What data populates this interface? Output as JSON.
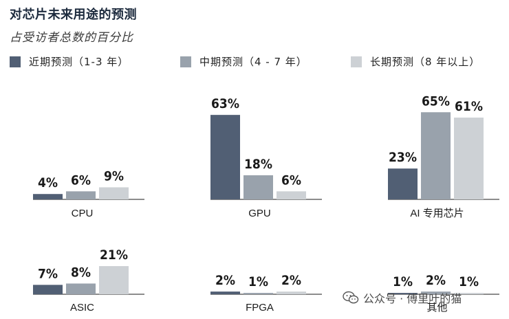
{
  "header": {
    "title": "对芯片未来用途的预测",
    "subtitle": "占受访者总数的百分比"
  },
  "colors": {
    "near": "#515f74",
    "mid": "#99a2ac",
    "long": "#cdd1d5",
    "axis": "#1a1a1a"
  },
  "legend": [
    {
      "label": "近期预测（1-3 年）",
      "color": "#515f74"
    },
    {
      "label": "中期预测（4 - 7 年）",
      "color": "#99a2ac"
    },
    {
      "label": "长期预测（8 年以上）",
      "color": "#cdd1d5"
    }
  ],
  "chart_data": {
    "type": "bar",
    "title": "对芯片未来用途的预测",
    "subtitle": "占受访者总数的百分比",
    "series_names": [
      "近期预测（1-3 年）",
      "中期预测（4 - 7 年）",
      "长期预测（8 年以上）"
    ],
    "unit": "%",
    "groups": [
      {
        "category": "CPU",
        "values": [
          4,
          6,
          9
        ],
        "labels": [
          "4%",
          "6%",
          "9%"
        ]
      },
      {
        "category": "GPU",
        "values": [
          63,
          18,
          6
        ],
        "labels": [
          "63%",
          "18%",
          "6%"
        ]
      },
      {
        "category": "AI 专用芯片",
        "values": [
          23,
          65,
          61
        ],
        "labels": [
          "23%",
          "65%",
          "61%"
        ]
      },
      {
        "category": "ASIC",
        "values": [
          7,
          8,
          21
        ],
        "labels": [
          "7%",
          "8%",
          "21%"
        ]
      },
      {
        "category": "FPGA",
        "values": [
          2,
          1,
          2
        ],
        "labels": [
          "2%",
          "1%",
          "2%"
        ]
      },
      {
        "category": "其他",
        "values": [
          1,
          2,
          1
        ],
        "labels": [
          "1%",
          "2%",
          "1%"
        ]
      }
    ]
  },
  "watermark": {
    "text": "公众号 · 傅里叶的猫"
  }
}
